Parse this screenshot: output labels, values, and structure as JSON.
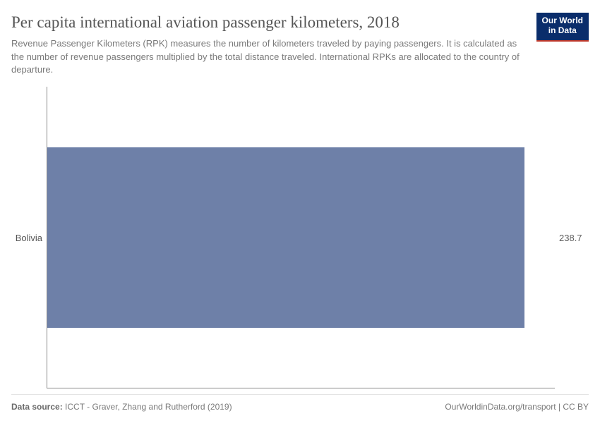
{
  "header": {
    "title": "Per capita international aviation passenger kilometers, 2018",
    "subtitle": "Revenue Passenger Kilometers (RPK) measures the number of kilometers traveled by paying passengers. It is calculated as the number of revenue passengers multiplied by the total distance traveled. International RPKs are allocated to the country of departure.",
    "logo_line1": "Our World",
    "logo_line2": "in Data",
    "logo_bg": "#0a2d6b",
    "logo_underline": "#c0392b"
  },
  "chart": {
    "type": "bar-horizontal",
    "categories": [
      "Bolivia"
    ],
    "values": [
      238.7
    ],
    "value_labels": [
      "238.7"
    ],
    "bar_color": "#6e80a8",
    "bar_fill_pct": 94,
    "bar_height_pct": 60,
    "axis_color": "#888888",
    "background_color": "#ffffff",
    "label_fontsize": 13,
    "label_color": "#555555",
    "value_color": "#5c5c5c"
  },
  "footer": {
    "source_prefix": "Data source:",
    "source_text": "ICCT - Graver, Zhang and Rutherford (2019)",
    "attribution": "OurWorldinData.org/transport | CC BY"
  }
}
